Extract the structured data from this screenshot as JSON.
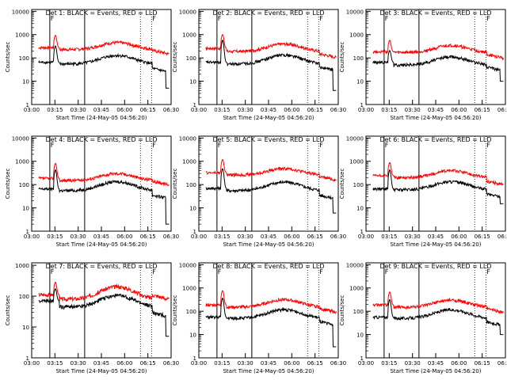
{
  "axes": {
    "xticks": [
      "03:00",
      "03:15",
      "03:30",
      "03:45",
      "06:00",
      "06:15",
      "06:30"
    ],
    "yticks": [
      "1",
      "10",
      "100",
      "1000",
      "10000"
    ],
    "ylabel": "Counts/sec",
    "xlabel": "Start Time (24-May-05 04:56:20)",
    "corner_label": "F"
  },
  "chart_data": [
    {
      "type": "line",
      "title": "Det 1: BLACK = Events, RED = LLD",
      "ylim": [
        1,
        12000
      ],
      "yscale": "log",
      "grid": false,
      "series": [
        {
          "name": "BLACK = Events",
          "color": "#000000",
          "shape": {
            "base": 55,
            "pre": 70,
            "peak": 250,
            "amp": 0.6,
            "end": 35,
            "drop": 5
          }
        },
        {
          "name": "RED = LLD",
          "color": "#ff0000",
          "shape": {
            "base": 230,
            "pre": 300,
            "peak": 600,
            "amp": 0.45,
            "end": 210
          }
        }
      ]
    },
    {
      "type": "line",
      "title": "Det 2: BLACK = Events, RED = LLD",
      "ylim": [
        1,
        12000
      ],
      "yscale": "log",
      "grid": false,
      "series": [
        {
          "name": "BLACK = Events",
          "color": "#000000",
          "shape": {
            "base": 55,
            "pre": 70,
            "peak": 500,
            "amp": 0.65,
            "end": 40,
            "drop": 4
          }
        },
        {
          "name": "RED = LLD",
          "color": "#ff0000",
          "shape": {
            "base": 190,
            "pre": 280,
            "peak": 700,
            "amp": 0.5,
            "end": 150
          }
        }
      ]
    },
    {
      "type": "line",
      "title": "Det 3: BLACK = Events, RED = LLD",
      "ylim": [
        1,
        12000
      ],
      "yscale": "log",
      "grid": false,
      "series": [
        {
          "name": "BLACK = Events",
          "color": "#000000",
          "shape": {
            "base": 50,
            "pre": 70,
            "peak": 130,
            "amp": 0.55,
            "end": 40,
            "drop": 10
          }
        },
        {
          "name": "RED = LLD",
          "color": "#ff0000",
          "shape": {
            "base": 170,
            "pre": 200,
            "peak": 350,
            "amp": 0.45,
            "end": 140
          }
        }
      ]
    },
    {
      "type": "line",
      "title": "Det 4: BLACK = Events, RED = LLD",
      "ylim": [
        1,
        12000
      ],
      "yscale": "log",
      "grid": false,
      "series": [
        {
          "name": "BLACK = Events",
          "color": "#000000",
          "shape": {
            "base": 55,
            "pre": 70,
            "peak": 350,
            "amp": 0.65,
            "end": 35,
            "drop": 2
          }
        },
        {
          "name": "RED = LLD",
          "color": "#ff0000",
          "shape": {
            "base": 150,
            "pre": 200,
            "peak": 600,
            "amp": 0.45,
            "end": 140
          }
        }
      ]
    },
    {
      "type": "line",
      "title": "Det 5: BLACK = Events, RED = LLD",
      "ylim": [
        1,
        12000
      ],
      "yscale": "log",
      "grid": false,
      "series": [
        {
          "name": "BLACK = Events",
          "color": "#000000",
          "shape": {
            "base": 55,
            "pre": 75,
            "peak": 400,
            "amp": 0.6,
            "end": 35,
            "drop": 6
          }
        },
        {
          "name": "RED = LLD",
          "color": "#ff0000",
          "shape": {
            "base": 260,
            "pre": 350,
            "peak": 800,
            "amp": 0.4,
            "end": 220
          }
        }
      ]
    },
    {
      "type": "line",
      "title": "Det 6: BLACK = Events, RED = LLD",
      "ylim": [
        1,
        12000
      ],
      "yscale": "log",
      "grid": false,
      "series": [
        {
          "name": "BLACK = Events",
          "color": "#000000",
          "shape": {
            "base": 60,
            "pre": 70,
            "peak": 350,
            "amp": 0.55,
            "end": 40,
            "drop": 15
          }
        },
        {
          "name": "RED = LLD",
          "color": "#ff0000",
          "shape": {
            "base": 200,
            "pre": 260,
            "peak": 600,
            "amp": 0.45,
            "end": 140
          }
        }
      ]
    },
    {
      "type": "line",
      "title": "Det 7: BLACK = Events, RED = LLD",
      "ylim": [
        1,
        1200
      ],
      "yscale": "log",
      "grid": false,
      "series": [
        {
          "name": "BLACK = Events",
          "color": "#000000",
          "shape": {
            "base": 45,
            "pre": 75,
            "peak": 90,
            "amp": 0.6,
            "end": 30,
            "drop": 5
          }
        },
        {
          "name": "RED = LLD",
          "color": "#ff0000",
          "shape": {
            "base": 80,
            "pre": 120,
            "peak": 150,
            "amp": 0.7,
            "end": 110
          }
        }
      ]
    },
    {
      "type": "line",
      "title": "Det 8: BLACK = Events, RED = LLD",
      "ylim": [
        1,
        12000
      ],
      "yscale": "log",
      "grid": false,
      "series": [
        {
          "name": "BLACK = Events",
          "color": "#000000",
          "shape": {
            "base": 50,
            "pre": 60,
            "peak": 300,
            "amp": 0.6,
            "end": 35,
            "drop": 3
          }
        },
        {
          "name": "RED = LLD",
          "color": "#ff0000",
          "shape": {
            "base": 150,
            "pre": 200,
            "peak": 550,
            "amp": 0.5,
            "end": 130
          }
        }
      ]
    },
    {
      "type": "line",
      "title": "Det 9: BLACK = Events, RED = LLD",
      "ylim": [
        1,
        12000
      ],
      "yscale": "log",
      "grid": false,
      "series": [
        {
          "name": "BLACK = Events",
          "color": "#000000",
          "shape": {
            "base": 50,
            "pre": 60,
            "peak": 250,
            "amp": 0.6,
            "end": 35,
            "drop": 10
          }
        },
        {
          "name": "RED = LLD",
          "color": "#ff0000",
          "shape": {
            "base": 150,
            "pre": 200,
            "peak": 450,
            "amp": 0.45,
            "end": 130
          }
        }
      ]
    }
  ]
}
